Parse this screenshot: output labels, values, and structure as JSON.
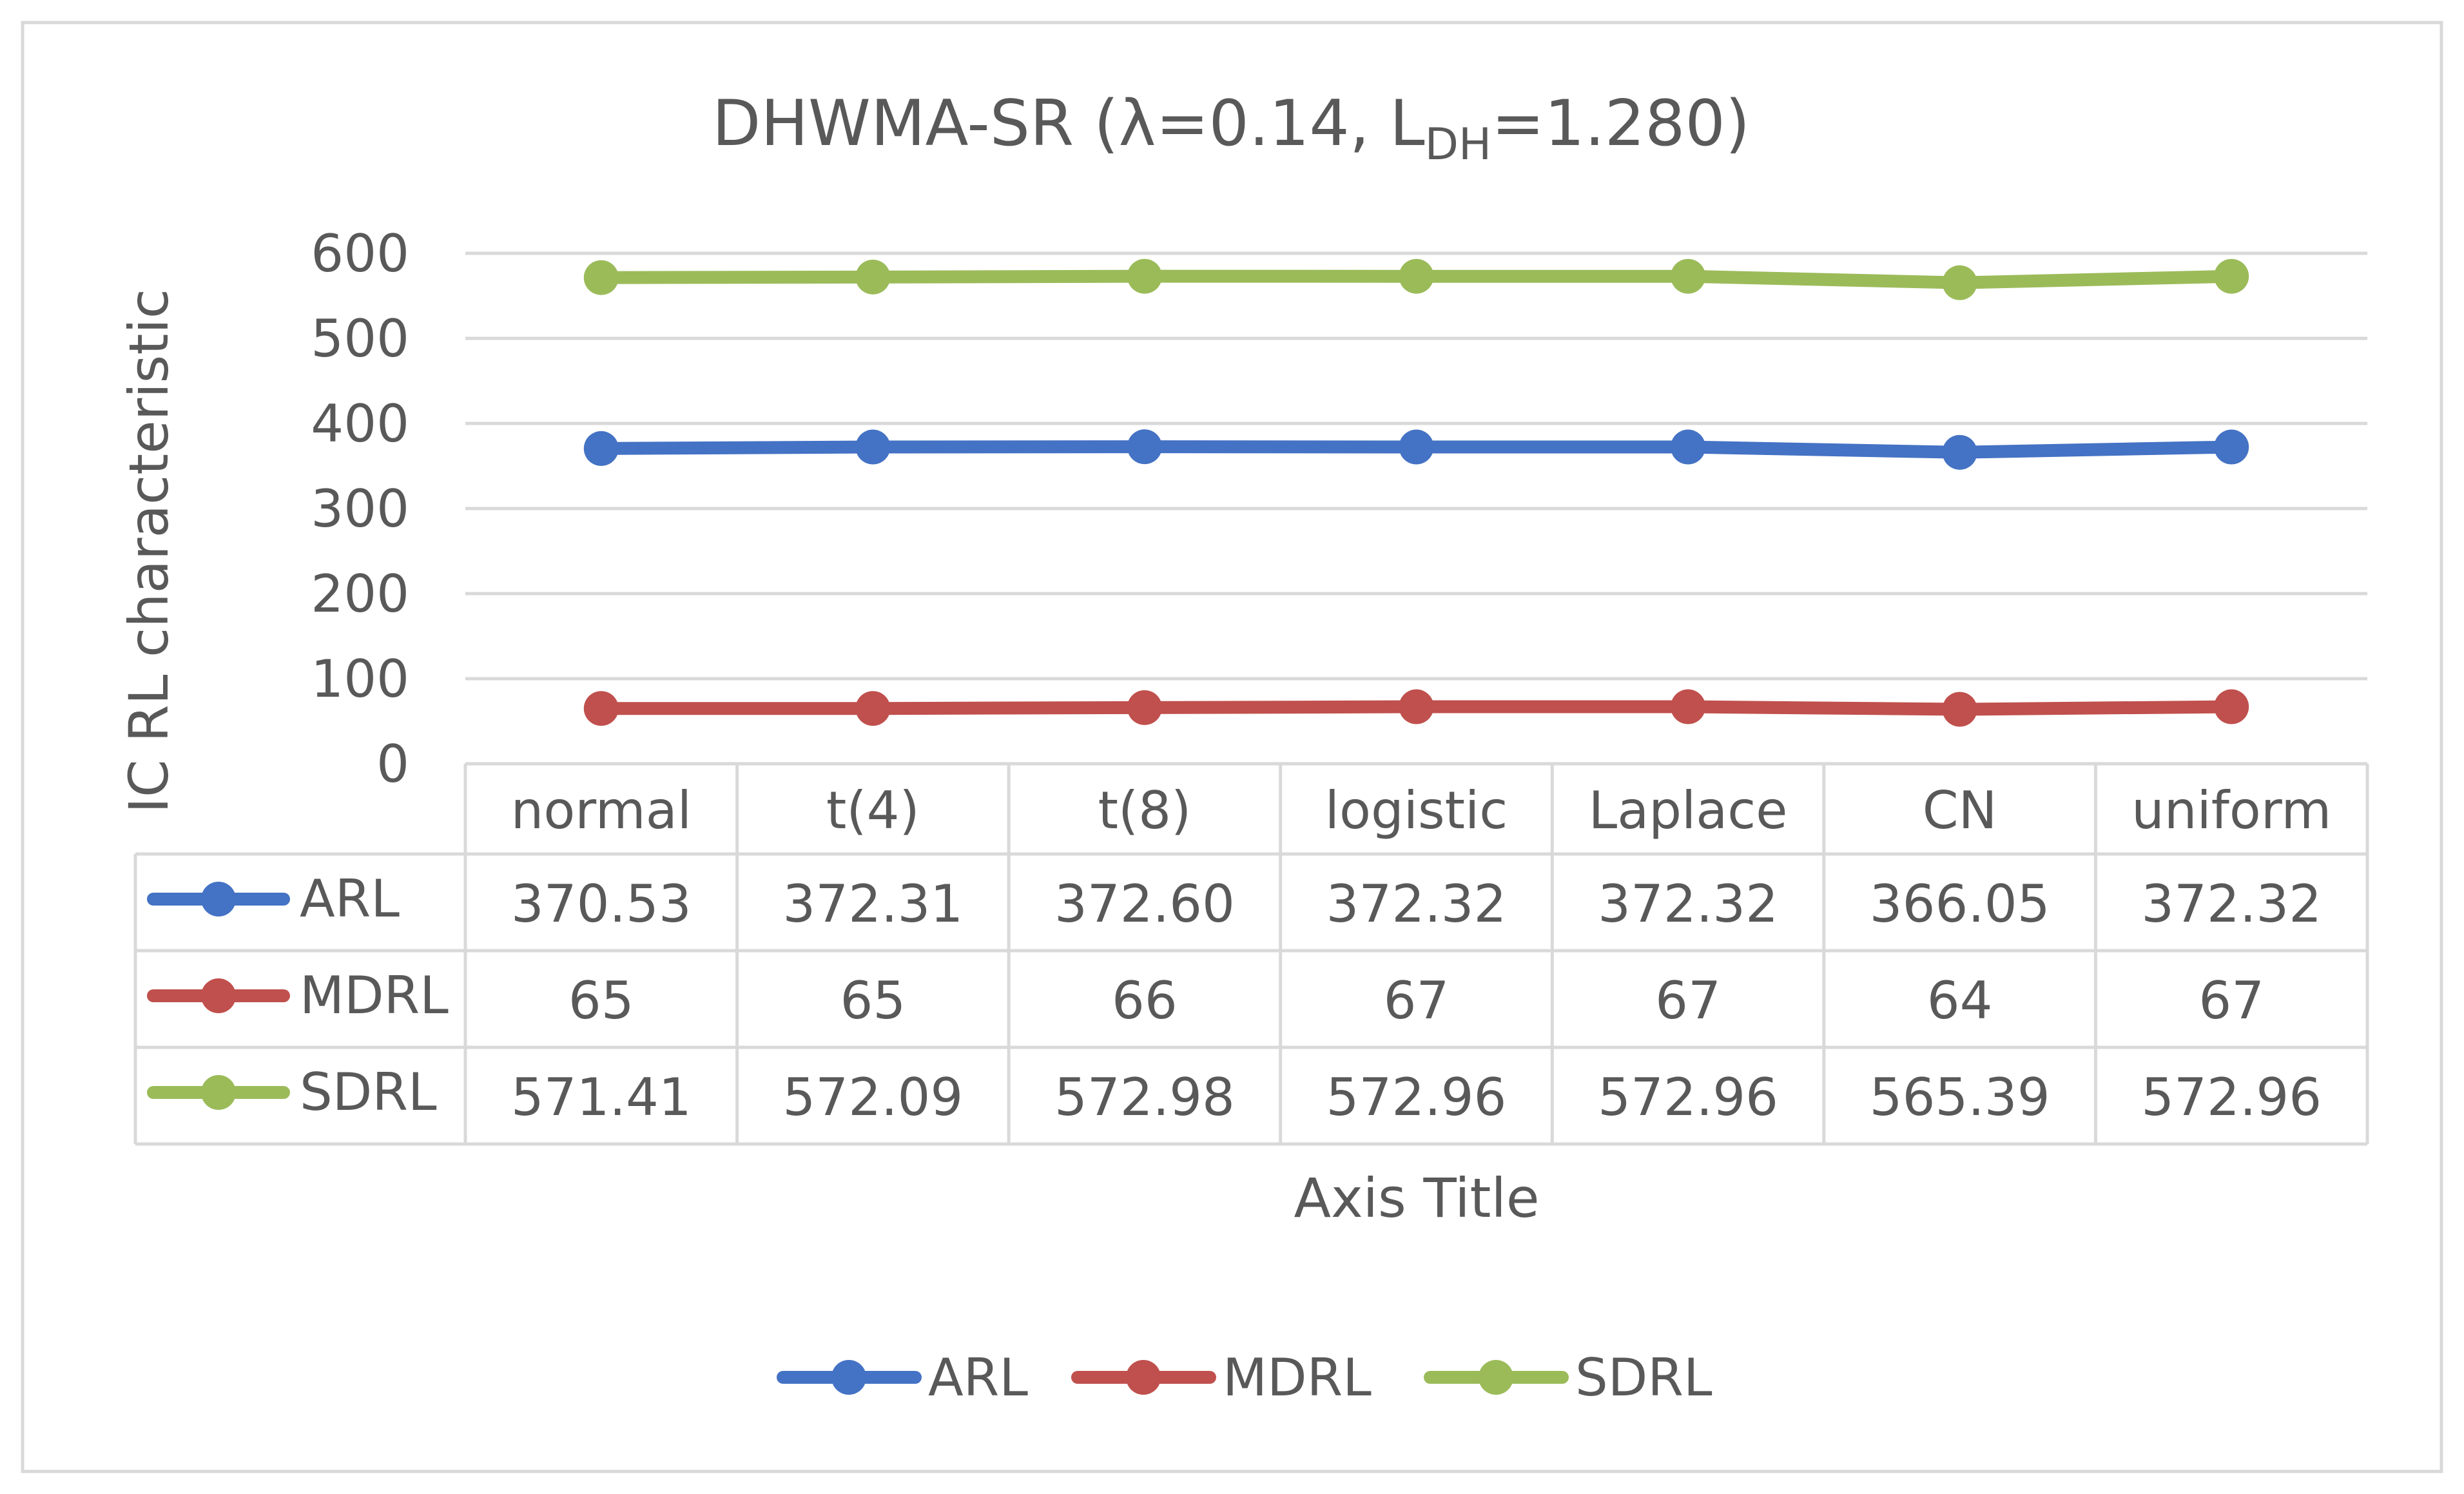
{
  "chart_data": {
    "type": "line",
    "title_main": "DHWMA-SR (λ=0.14, L",
    "title_sub": "DH",
    "title_tail": "=1.280)",
    "ylabel": "IC RL characteristic",
    "xlabel": "Axis Title",
    "ylim": [
      0,
      600
    ],
    "yticks": [
      0,
      100,
      200,
      300,
      400,
      500,
      600
    ],
    "categories": [
      "normal",
      "t(4)",
      "t(8)",
      "logistic",
      "Laplace",
      "CN",
      "uniform"
    ],
    "series": [
      {
        "name": "ARL",
        "color": "#4472C4",
        "values": [
          370.53,
          372.31,
          372.6,
          372.32,
          372.32,
          366.05,
          372.32
        ],
        "labels": [
          "370.53",
          "372.31",
          "372.60",
          "372.32",
          "372.32",
          "366.05",
          "372.32"
        ]
      },
      {
        "name": "MDRL",
        "color": "#C0504D",
        "values": [
          65,
          65,
          66,
          67,
          67,
          64,
          67
        ],
        "labels": [
          "65",
          "65",
          "66",
          "67",
          "67",
          "64",
          "67"
        ]
      },
      {
        "name": "SDRL",
        "color": "#9BBB59",
        "values": [
          571.41,
          572.09,
          572.98,
          572.96,
          572.96,
          565.39,
          572.96
        ],
        "labels": [
          "571.41",
          "572.09",
          "572.98",
          "572.96",
          "572.96",
          "565.39",
          "572.96"
        ]
      }
    ],
    "grid": true,
    "legend": "bottom",
    "data_table": true
  },
  "colors": {
    "border": "#D9D9D9",
    "gridline": "#D9D9D9",
    "text": "#595959"
  }
}
